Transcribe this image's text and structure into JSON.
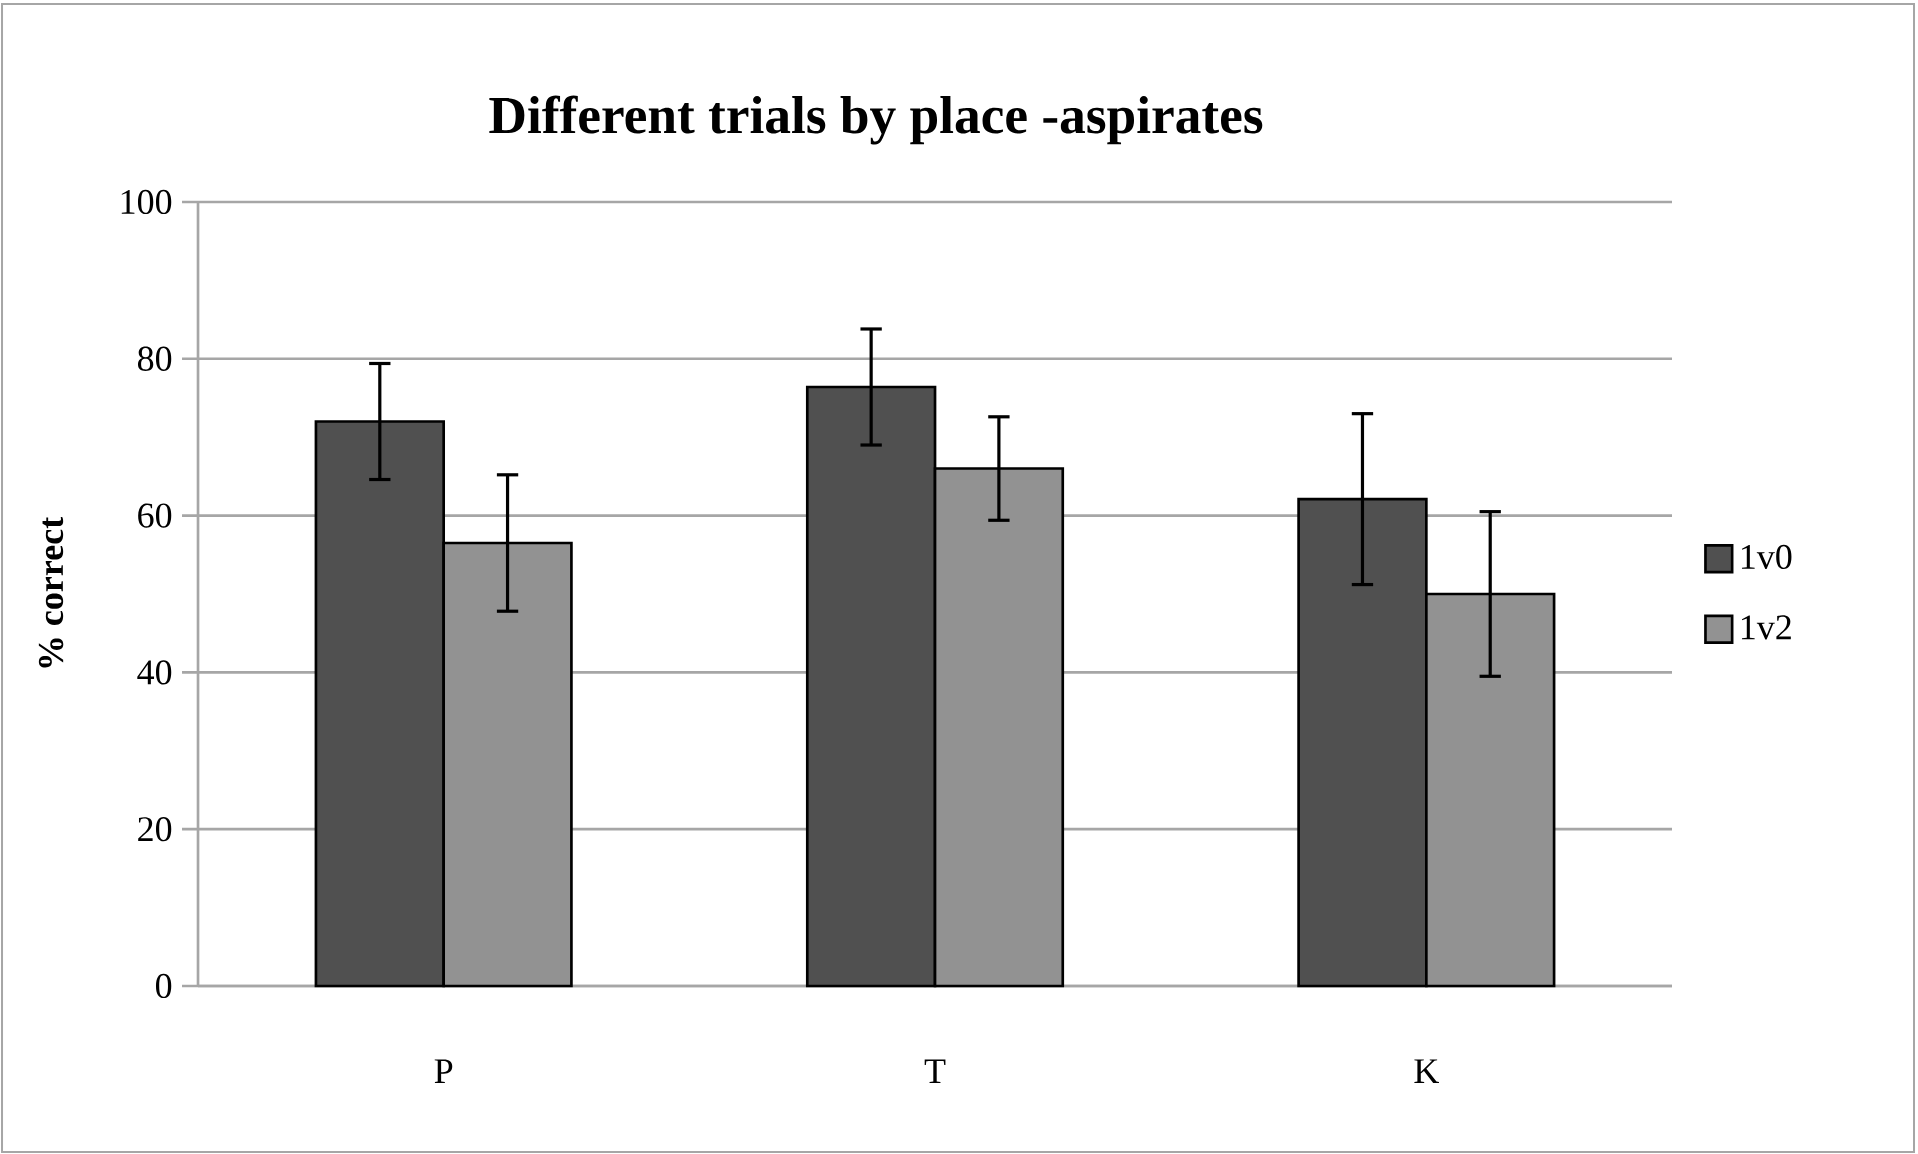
{
  "chart_data": {
    "type": "bar",
    "title": "Different trials by place -aspirates",
    "ylabel": "% correct",
    "categories": [
      "P",
      "T",
      "K"
    ],
    "series": [
      {
        "name": "1v0",
        "color": "#505050",
        "values": [
          72,
          76.4,
          62.1
        ],
        "errors": [
          7.4,
          7.4,
          10.9
        ]
      },
      {
        "name": "1v2",
        "color": "#929292",
        "values": [
          56.5,
          66,
          50
        ],
        "errors": [
          8.7,
          6.6,
          10.5
        ]
      }
    ],
    "ylim": [
      0,
      100
    ],
    "yticks": [
      0,
      20,
      40,
      60,
      80,
      100
    ],
    "grid": "y",
    "legend": "right"
  }
}
